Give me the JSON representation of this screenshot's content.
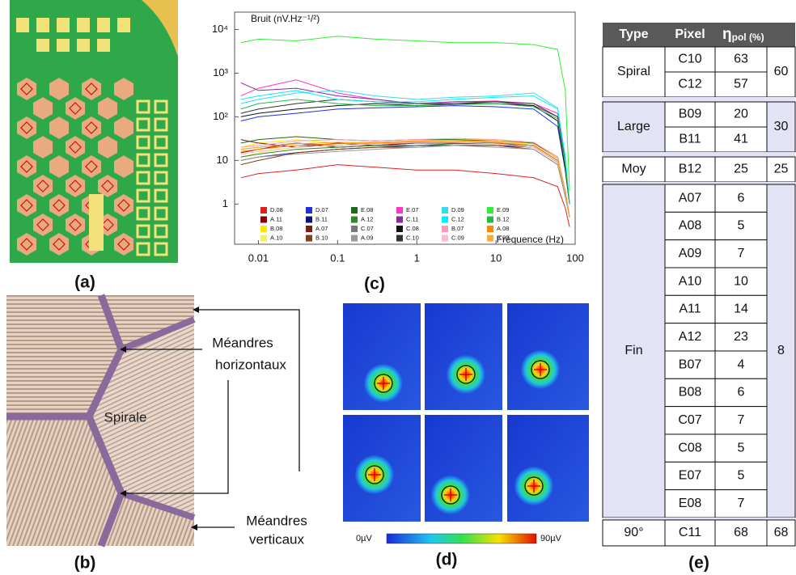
{
  "panel_labels": [
    "(a)",
    "(b)",
    "(c)",
    "(d)",
    "(e)"
  ],
  "panel_b": {
    "horizontal_label": [
      "Méandres",
      "horizontaux"
    ],
    "center_label": "Spirale",
    "vertical_label": [
      "Méandres",
      "verticaux"
    ]
  },
  "chart_data": {
    "type": "line",
    "title": "Bruit (nV.Hz⁻¹/²)",
    "x_label": "Fréquence (Hz)",
    "log_x": true,
    "log_y": true,
    "grid": false,
    "xlim": [
      0.005,
      100
    ],
    "ylim": [
      0.12,
      25000
    ],
    "xticks": [
      0.01,
      0.1,
      1,
      10,
      100
    ],
    "yticks": [
      1,
      10,
      {
        "value": 100,
        "label": "10²"
      },
      {
        "value": 1000,
        "label": "10³"
      },
      {
        "value": 10000,
        "label": "10⁴"
      }
    ],
    "x": [
      0.006,
      0.01,
      0.03,
      0.1,
      0.3,
      1,
      3,
      10,
      30,
      60,
      75,
      85
    ],
    "series": [
      {
        "name": "D.08",
        "color": "#e02020",
        "values": [
          4,
          5,
          6,
          8,
          7,
          6,
          6,
          5,
          4,
          2.5,
          0.8,
          0.3
        ]
      },
      {
        "name": "A.11",
        "color": "#8b0000",
        "values": [
          15,
          18,
          25,
          20,
          22,
          25,
          25,
          25,
          22,
          10,
          2,
          0.5
        ]
      },
      {
        "name": "B.08",
        "color": "#ffe600",
        "values": [
          20,
          25,
          30,
          25,
          25,
          28,
          30,
          30,
          25,
          12,
          2,
          0.5
        ]
      },
      {
        "name": "A.10",
        "color": "#f0f060",
        "values": [
          12,
          15,
          20,
          22,
          25,
          25,
          28,
          28,
          22,
          10,
          2,
          0.5
        ]
      },
      {
        "name": "D.07",
        "color": "#2030e0",
        "values": [
          80,
          100,
          120,
          150,
          160,
          170,
          180,
          170,
          150,
          60,
          6,
          1
        ]
      },
      {
        "name": "B.11",
        "color": "#10107a",
        "values": [
          10,
          12,
          15,
          18,
          20,
          22,
          22,
          22,
          20,
          9,
          2,
          0.5
        ]
      },
      {
        "name": "A.07",
        "color": "#7a1a1a",
        "values": [
          30,
          25,
          20,
          25,
          22,
          25,
          25,
          24,
          22,
          10,
          2,
          0.5
        ]
      },
      {
        "name": "B.10",
        "color": "#8a3a1a",
        "values": [
          8,
          10,
          15,
          18,
          20,
          20,
          22,
          22,
          18,
          8,
          1.5,
          0.5
        ]
      },
      {
        "name": "E.08",
        "color": "#1a6a1a",
        "values": [
          25,
          30,
          35,
          30,
          28,
          30,
          30,
          28,
          25,
          12,
          2,
          0.5
        ]
      },
      {
        "name": "A.12",
        "color": "#2a8a2a",
        "values": [
          12,
          14,
          18,
          20,
          22,
          22,
          24,
          24,
          20,
          9,
          2,
          0.5
        ]
      },
      {
        "name": "C.07",
        "color": "#777777",
        "values": [
          18,
          20,
          25,
          22,
          24,
          25,
          26,
          25,
          22,
          10,
          2,
          0.5
        ]
      },
      {
        "name": "A.09",
        "color": "#999999",
        "values": [
          10,
          12,
          14,
          16,
          18,
          20,
          22,
          20,
          18,
          8,
          1.5,
          0.5
        ]
      },
      {
        "name": "E.07",
        "color": "#ff33cc",
        "values": [
          300,
          450,
          700,
          350,
          250,
          200,
          220,
          230,
          200,
          120,
          10,
          1
        ]
      },
      {
        "name": "C.11",
        "color": "#8a2a9a",
        "values": [
          600,
          400,
          450,
          300,
          250,
          200,
          220,
          220,
          180,
          100,
          10,
          1
        ]
      },
      {
        "name": "C.08",
        "color": "#111111",
        "values": [
          100,
          120,
          150,
          180,
          200,
          180,
          200,
          200,
          180,
          80,
          6,
          1
        ]
      },
      {
        "name": "C.10",
        "color": "#333333",
        "values": [
          120,
          150,
          200,
          250,
          220,
          200,
          200,
          220,
          200,
          100,
          8,
          1
        ]
      },
      {
        "name": "D.09",
        "color": "#33ddee",
        "values": [
          200,
          250,
          350,
          400,
          300,
          250,
          280,
          300,
          350,
          160,
          12,
          1
        ]
      },
      {
        "name": "C.12",
        "color": "#00eeff",
        "values": [
          250,
          300,
          400,
          250,
          220,
          220,
          250,
          280,
          300,
          150,
          12,
          1
        ]
      },
      {
        "name": "B.07",
        "color": "#ff99bb",
        "values": [
          20,
          22,
          28,
          30,
          28,
          30,
          32,
          30,
          26,
          12,
          2,
          0.5
        ]
      },
      {
        "name": "C.09",
        "color": "#ffbbcc",
        "values": [
          14,
          16,
          20,
          22,
          24,
          26,
          26,
          24,
          20,
          9,
          2,
          0.5
        ]
      },
      {
        "name": "E.09",
        "color": "#33ee33",
        "values": [
          5000,
          6000,
          5500,
          7000,
          6000,
          5500,
          5000,
          5000,
          4500,
          3500,
          400,
          2
        ]
      },
      {
        "name": "B.12",
        "color": "#22bb44",
        "values": [
          150,
          200,
          250,
          200,
          180,
          180,
          190,
          200,
          170,
          90,
          8,
          1
        ]
      },
      {
        "name": "A.08",
        "color": "#ff8800",
        "values": [
          16,
          18,
          22,
          24,
          25,
          27,
          28,
          26,
          22,
          10,
          2,
          0.5
        ]
      },
      {
        "name": "B.09",
        "color": "#ffaa33",
        "values": [
          18,
          20,
          24,
          26,
          26,
          28,
          28,
          28,
          24,
          11,
          2,
          0.5
        ]
      }
    ]
  },
  "panel_d": {
    "colorbar_min": "0µV",
    "colorbar_max": "90µV"
  },
  "table": {
    "header": [
      "Type",
      "Pixel"
    ],
    "eta": {
      "symbol": "η",
      "sub": "pol (%)"
    },
    "groups": [
      {
        "type": "Spiral",
        "mean": 60,
        "rows": [
          [
            "C10",
            63
          ],
          [
            "C12",
            57
          ]
        ]
      },
      {
        "type": "Large",
        "mean": 30,
        "rows": [
          [
            "B09",
            20
          ],
          [
            "B11",
            41
          ]
        ]
      },
      {
        "type": "Moy",
        "mean": 25,
        "rows": [
          [
            "B12",
            25
          ]
        ]
      },
      {
        "type": "Fin",
        "mean": 8,
        "rows": [
          [
            "A07",
            6
          ],
          [
            "A08",
            5
          ],
          [
            "A09",
            7
          ],
          [
            "A10",
            10
          ],
          [
            "A11",
            14
          ],
          [
            "A12",
            23
          ],
          [
            "B07",
            4
          ],
          [
            "B08",
            6
          ],
          [
            "C07",
            7
          ],
          [
            "C08",
            5
          ],
          [
            "E07",
            5
          ],
          [
            "E08",
            7
          ]
        ]
      },
      {
        "type": "90°",
        "mean": 68,
        "rows": [
          [
            "C11",
            68
          ]
        ]
      }
    ]
  }
}
